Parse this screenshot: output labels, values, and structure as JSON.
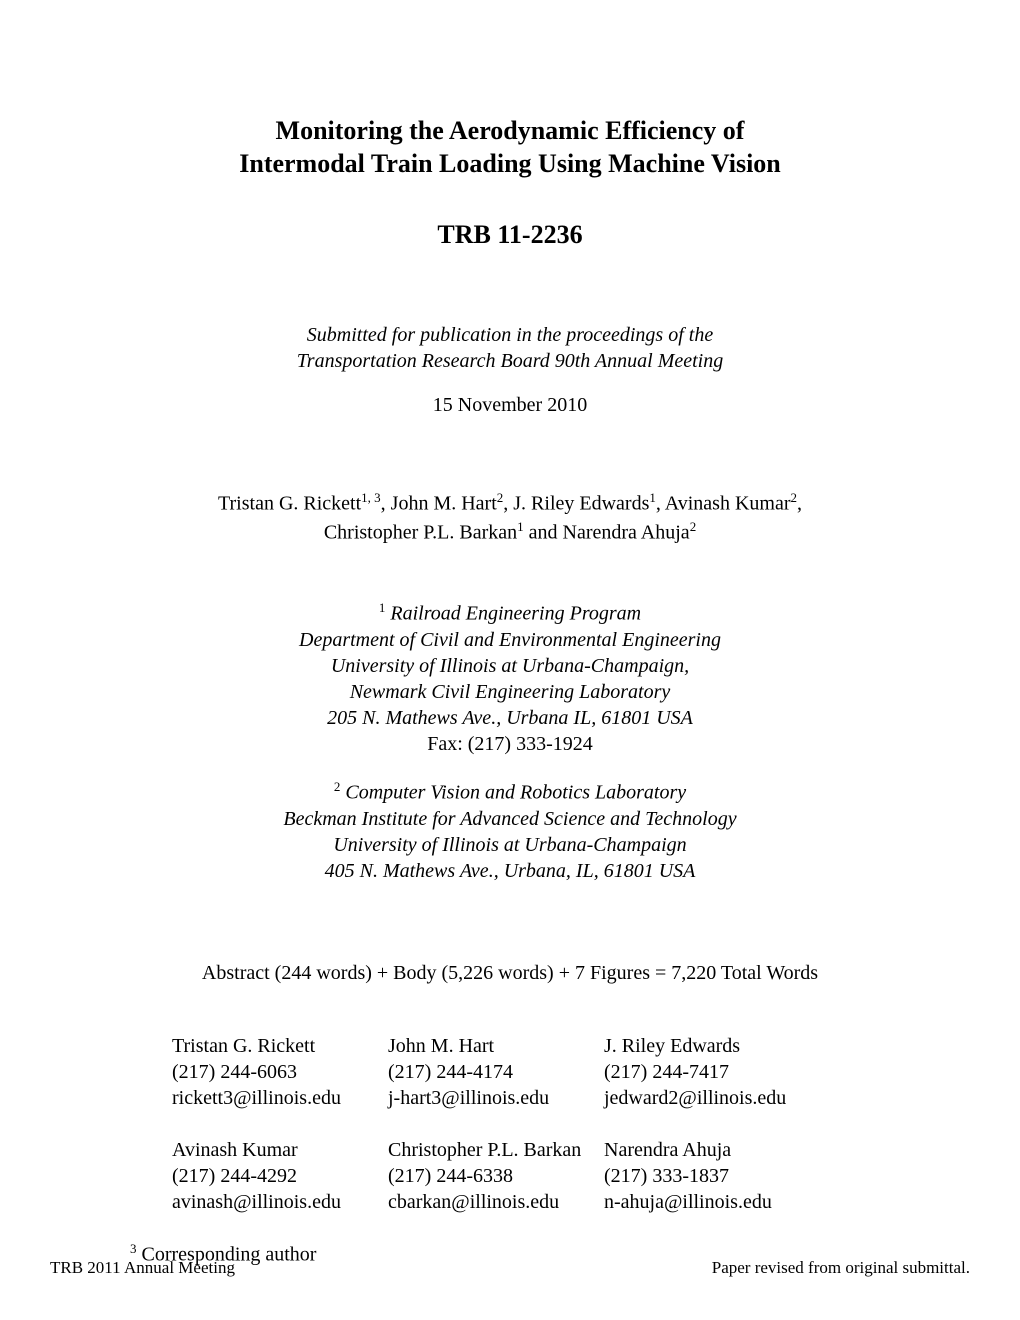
{
  "title": {
    "line1": "Monitoring the Aerodynamic Efficiency of",
    "line2": "Intermodal Train Loading Using Machine Vision"
  },
  "paper_number": "TRB 11-2236",
  "submission": {
    "line1": "Submitted for publication in the proceedings of the",
    "line2": "Transportation Research Board 90th Annual Meeting"
  },
  "date": "15 November 2010",
  "authors_line1_parts": {
    "a1_name": "Tristan G. Rickett",
    "a1_sup": "1, 3",
    "sep1": ", ",
    "a2_name": "John M. Hart",
    "a2_sup": "2",
    "sep2": ", ",
    "a3_name": "J. Riley Edwards",
    "a3_sup": "1",
    "sep3": ", ",
    "a4_name": "Avinash Kumar",
    "a4_sup": "2",
    "comma": ","
  },
  "authors_line2_parts": {
    "a5_name": "Christopher P.L. Barkan",
    "a5_sup": "1",
    "and": " and ",
    "a6_name": "Narendra Ahuja",
    "a6_sup": "2"
  },
  "affil1": {
    "sup": "1",
    "l1": " Railroad Engineering Program",
    "l2": "Department of Civil and Environmental Engineering",
    "l3": "University of Illinois at Urbana-Champaign,",
    "l4": "Newmark Civil Engineering Laboratory",
    "l5": "205 N. Mathews Ave., Urbana IL, 61801 USA",
    "fax": "Fax: (217) 333-1924"
  },
  "affil2": {
    "sup": "2",
    "l1": " Computer Vision and Robotics Laboratory",
    "l2": "Beckman Institute for Advanced Science and Technology",
    "l3": "University of Illinois at Urbana-Champaign",
    "l4": "405 N. Mathews Ave., Urbana, IL, 61801 USA"
  },
  "word_count": "Abstract (244 words) + Body (5,226 words) + 7 Figures = 7,220 Total Words",
  "contacts": [
    {
      "name": "Tristan G. Rickett",
      "phone": "(217) 244-6063",
      "email": "rickett3@illinois.edu"
    },
    {
      "name": "John M. Hart",
      "phone": "(217) 244-4174",
      "email": "j-hart3@illinois.edu"
    },
    {
      "name": "J. Riley Edwards",
      "phone": "(217) 244-7417",
      "email": "jedward2@illinois.edu"
    },
    {
      "name": "Avinash Kumar",
      "phone": "(217) 244-4292",
      "email": "avinash@illinois.edu"
    },
    {
      "name": "Christopher P.L. Barkan",
      "phone": "(217) 244-6338",
      "email": "cbarkan@illinois.edu"
    },
    {
      "name": "Narendra Ahuja",
      "phone": "(217) 333-1837",
      "email": "n-ahuja@illinois.edu"
    }
  ],
  "corresponding": {
    "sup": "3",
    "text": " Corresponding author"
  },
  "footer": {
    "left": "TRB 2011 Annual Meeting",
    "right": "Paper revised from original submittal."
  }
}
